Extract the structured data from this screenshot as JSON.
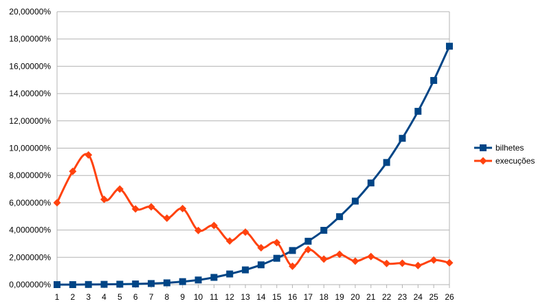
{
  "chart_data": {
    "type": "line",
    "title": "",
    "xlabel": "",
    "ylabel": "",
    "categories": [
      "1",
      "2",
      "3",
      "4",
      "5",
      "6",
      "7",
      "8",
      "9",
      "10",
      "11",
      "12",
      "13",
      "14",
      "15",
      "16",
      "17",
      "18",
      "19",
      "20",
      "21",
      "22",
      "23",
      "24",
      "25",
      "26"
    ],
    "ylim": [
      0,
      20
    ],
    "y_ticks": [
      "0,000000%",
      "2,000000%",
      "4,000000%",
      "6,000000%",
      "8,000000%",
      "10,00000%",
      "12,00000%",
      "14,00000%",
      "16,00000%",
      "18,00000%",
      "20,00000%"
    ],
    "grid": "horizontal",
    "legend": "right",
    "series": [
      {
        "name": "bilhetes",
        "color": "#004586",
        "marker": "square",
        "smooth": true,
        "values": [
          0.0,
          0.0,
          0.01,
          0.02,
          0.03,
          0.05,
          0.08,
          0.13,
          0.22,
          0.34,
          0.53,
          0.78,
          1.08,
          1.45,
          1.93,
          2.5,
          3.18,
          3.98,
          4.98,
          6.12,
          7.45,
          8.95,
          10.72,
          12.7,
          14.96,
          17.47
        ]
      },
      {
        "name": "execuções",
        "color": "#ff420e",
        "marker": "diamond",
        "smooth": true,
        "values": [
          6.0,
          8.3,
          9.5,
          6.25,
          7.0,
          5.55,
          5.7,
          4.87,
          5.57,
          3.97,
          4.33,
          3.2,
          3.85,
          2.7,
          3.08,
          1.35,
          2.57,
          1.87,
          2.22,
          1.72,
          2.06,
          1.55,
          1.57,
          1.4,
          1.8,
          1.6
        ]
      }
    ]
  }
}
